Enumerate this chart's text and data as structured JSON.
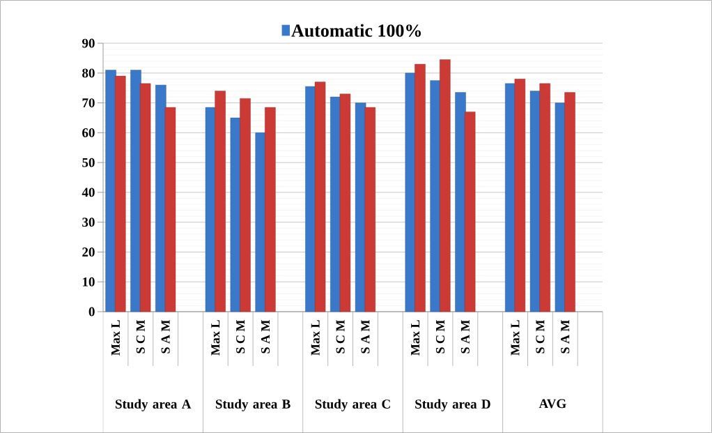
{
  "chart_data": {
    "type": "bar",
    "categories": [
      "Max L",
      "S C M",
      "S A M",
      null,
      "Max L",
      "S C M",
      "S A M",
      null,
      "Max L",
      "S C M",
      "S A M",
      null,
      "Max L",
      "S C M",
      "S A M",
      null,
      "Max L",
      "S C M",
      "S A M",
      null
    ],
    "series": [
      {
        "name": "Automatic 100%",
        "color": "#3a78c9",
        "values": [
          81,
          81,
          76,
          null,
          68.5,
          65,
          60,
          null,
          75.5,
          72,
          70,
          null,
          80,
          77.5,
          73.5,
          null,
          76.5,
          74,
          70,
          null
        ]
      },
      {
        "color": "#cc3a36",
        "values": [
          79,
          76.5,
          68.5,
          null,
          74,
          71.5,
          68.5,
          null,
          77,
          73,
          68.5,
          null,
          83,
          84.5,
          67,
          null,
          78,
          76.5,
          73.5,
          null
        ]
      }
    ],
    "annotations": [
      "Study area A",
      "Study area B",
      "Study area C",
      "Study area D",
      "AVG"
    ],
    "ylim": [
      0,
      90
    ],
    "yticks": [
      0,
      10,
      20,
      30,
      40,
      50,
      60,
      70,
      80,
      90
    ],
    "grid": "y",
    "legend": "top"
  }
}
